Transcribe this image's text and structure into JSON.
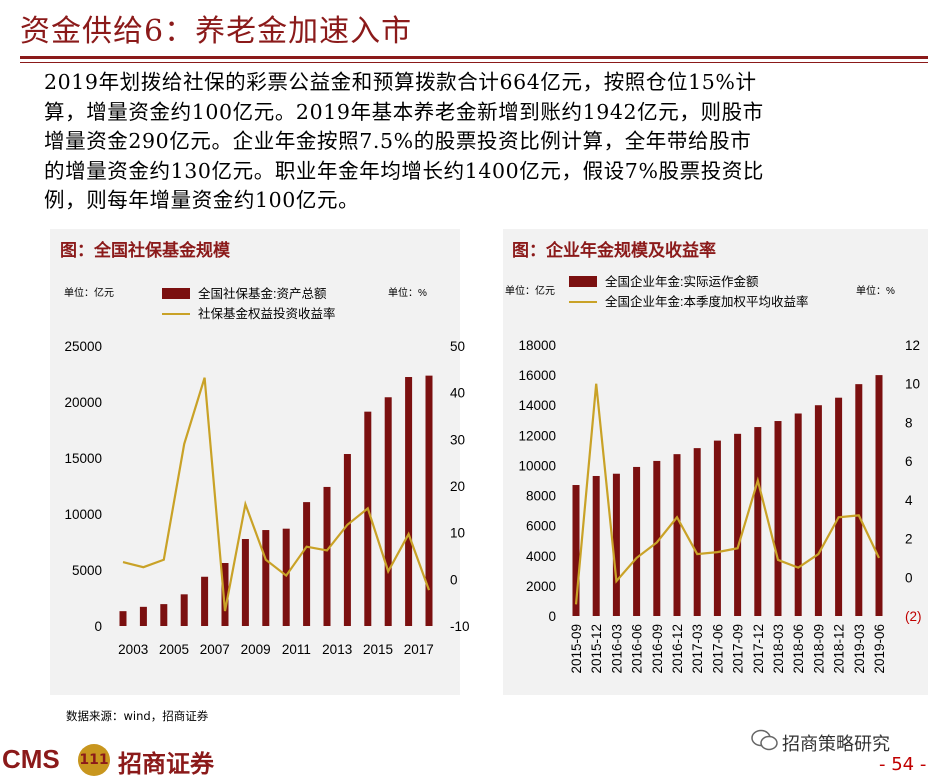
{
  "title": "资金供给6：养老金加速入市",
  "body_lines": [
    "2019年划拨给社保的彩票公益金和预算拨款合计664亿元，按照仓位15%计",
    "算，增量资金约100亿元。2019年基本养老金新增到账约1942亿元，则股市",
    "增量资金290亿元。企业年金按照7.5%的股票投资比例计算，全年带给股市",
    "的增量资金约130亿元。职业年金年均增长约1400亿元，假设7%股票投资比",
    "例，则每年增量资金约100亿元。"
  ],
  "panel_left": {
    "title": "图：全国社保基金规模",
    "unit_left": "单位：亿元",
    "unit_right": "单位：%",
    "legend_bar": "全国社保基金:资产总额",
    "legend_line": "社保基金权益投资收益率"
  },
  "panel_right": {
    "title": "图：企业年金规模及收益率",
    "unit_left": "单位：亿元",
    "unit_right": "单位：%",
    "legend_bar": "全国企业年金:实际运作金额",
    "legend_line": "全国企业年金:本季度加权平均收益率"
  },
  "colors": {
    "bar": "#7b1010",
    "line": "#c9a227",
    "accent": "#8b1a1a",
    "panel_bg": "#f2f2f2"
  },
  "chart_data": [
    {
      "type": "bar",
      "title": "图：全国社保基金规模",
      "x": [
        "2003",
        "2004",
        "2005",
        "2006",
        "2007",
        "2008",
        "2009",
        "2010",
        "2011",
        "2012",
        "2013",
        "2014",
        "2015",
        "2016",
        "2017",
        "2018"
      ],
      "x_tick_labels": [
        "2003",
        "2005",
        "2007",
        "2009",
        "2011",
        "2013",
        "2015",
        "2017"
      ],
      "ylim": [
        0,
        25000
      ],
      "yticks": [
        0,
        5000,
        10000,
        15000,
        20000,
        25000
      ],
      "y2lim": [
        -10,
        50
      ],
      "y2ticks": [
        -10,
        0,
        10,
        20,
        30,
        40,
        50
      ],
      "series": [
        {
          "name": "全国社保基金:资产总额",
          "axis": "left",
          "kind": "bar",
          "values": [
            1325,
            1711,
            1954,
            2828,
            4397,
            5624,
            7766,
            8567,
            8689,
            11061,
            12416,
            15356,
            19138,
            20423,
            22231,
            22354
          ]
        },
        {
          "name": "社保基金权益投资收益率",
          "axis": "right",
          "kind": "line",
          "values": [
            3.7,
            2.6,
            4.2,
            29.0,
            43.2,
            -6.8,
            16.1,
            4.2,
            0.8,
            7.0,
            6.2,
            11.7,
            15.2,
            1.7,
            9.7,
            -2.3
          ]
        }
      ],
      "legend_position": "top",
      "grid": false
    },
    {
      "type": "bar",
      "title": "图：企业年金规模及收益率",
      "x": [
        "2015-09",
        "2015-12",
        "2016-03",
        "2016-06",
        "2016-09",
        "2016-12",
        "2017-03",
        "2017-06",
        "2017-09",
        "2017-12",
        "2018-03",
        "2018-06",
        "2018-09",
        "2018-12",
        "2019-03",
        "2019-06"
      ],
      "ylim": [
        0,
        18000
      ],
      "yticks": [
        0,
        2000,
        4000,
        6000,
        8000,
        10000,
        12000,
        14000,
        16000,
        18000
      ],
      "y2lim": [
        -2,
        12
      ],
      "y2ticks": [
        0,
        2,
        4,
        6,
        8,
        10,
        12
      ],
      "y2_extra_label": "(2)",
      "series": [
        {
          "name": "全国企业年金:实际运作金额",
          "axis": "left",
          "kind": "bar",
          "values": [
            8700,
            9300,
            9450,
            9900,
            10300,
            10750,
            11150,
            11650,
            12100,
            12550,
            12950,
            13450,
            14000,
            14500,
            15400,
            16000
          ]
        },
        {
          "name": "全国企业年金:本季度加权平均收益率",
          "axis": "right",
          "kind": "line",
          "values": [
            -1.4,
            10.0,
            -0.2,
            1.0,
            1.8,
            3.1,
            1.2,
            1.3,
            1.5,
            5.0,
            0.9,
            0.5,
            1.2,
            3.1,
            3.2,
            1.0
          ]
        }
      ],
      "legend_position": "top",
      "grid": false
    }
  ],
  "source": "数据来源：wind，招商证券",
  "footer": {
    "logo_text": "CMS",
    "badge_text": "111",
    "brand": "招商证券",
    "watermark": "招商策略研究",
    "page": "- 54 -"
  }
}
